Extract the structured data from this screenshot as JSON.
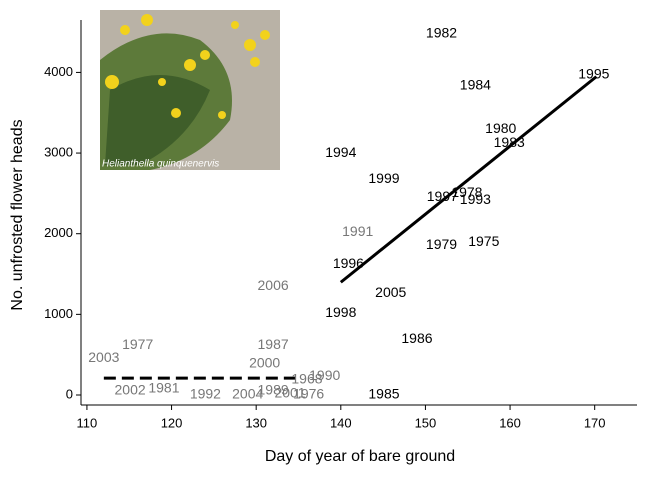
{
  "chart_data": {
    "type": "scatter",
    "x_label": "Day of year of bare ground",
    "y_label": "No. unfrosted flower heads",
    "inset_caption": "Helianthella quinquenervis",
    "xlim": [
      109.3,
      175
    ],
    "ylim": [
      -124,
      4650
    ],
    "xticks": [
      110,
      120,
      130,
      140,
      150,
      160,
      170
    ],
    "yticks": [
      0,
      1000,
      2000,
      3000,
      4000
    ],
    "labels": [
      "1982",
      "1984",
      "1995",
      "1980",
      "1983",
      "1994",
      "1999",
      "1997",
      "1978",
      "1993",
      "1991",
      "1979",
      "1975",
      "1996",
      "2006",
      "2005",
      "1998",
      "1986",
      "1977",
      "1987",
      "2003",
      "2000",
      "1968",
      "1990",
      "2002",
      "1981",
      "1992",
      "2004",
      "1989",
      "2001",
      "1976",
      "1985"
    ],
    "x": [
      151.9,
      155.9,
      169.9,
      158.9,
      159.9,
      140.0,
      145.1,
      152.0,
      154.9,
      155.9,
      142.0,
      151.9,
      156.9,
      140.9,
      132.0,
      145.9,
      140.0,
      149.0,
      116.0,
      132.0,
      112.0,
      131.0,
      136.0,
      138.1,
      115.1,
      119.1,
      124.0,
      129.0,
      132.0,
      134.0,
      136.2,
      145.1
    ],
    "y": [
      4480,
      3837,
      3973,
      3292,
      3119,
      2995,
      2673,
      2450,
      2500,
      2413,
      2017,
      1856,
      1894,
      1621,
      1349,
      1262,
      1015,
      693,
      619,
      619,
      458,
      384,
      186,
      235,
      50,
      74,
      0,
      0,
      50,
      12,
      0,
      0
    ],
    "colors": [
      "#000",
      "#000",
      "#000",
      "#000",
      "#000",
      "#000",
      "#000",
      "#000",
      "#000",
      "#000",
      "#777",
      "#000",
      "#000",
      "#000",
      "#777",
      "#000",
      "#000",
      "#000",
      "#777",
      "#777",
      "#777",
      "#777",
      "#777",
      "#777",
      "#777",
      "#777",
      "#777",
      "#777",
      "#777",
      "#777",
      "#777",
      "#000"
    ],
    "lines": [
      {
        "x": [
          140,
          170.2
        ],
        "y": [
          1398,
          3948
        ],
        "dashed": false
      },
      {
        "x": [
          112.0,
          135.1
        ],
        "y": [
          210,
          210
        ],
        "dashed": true
      }
    ]
  }
}
